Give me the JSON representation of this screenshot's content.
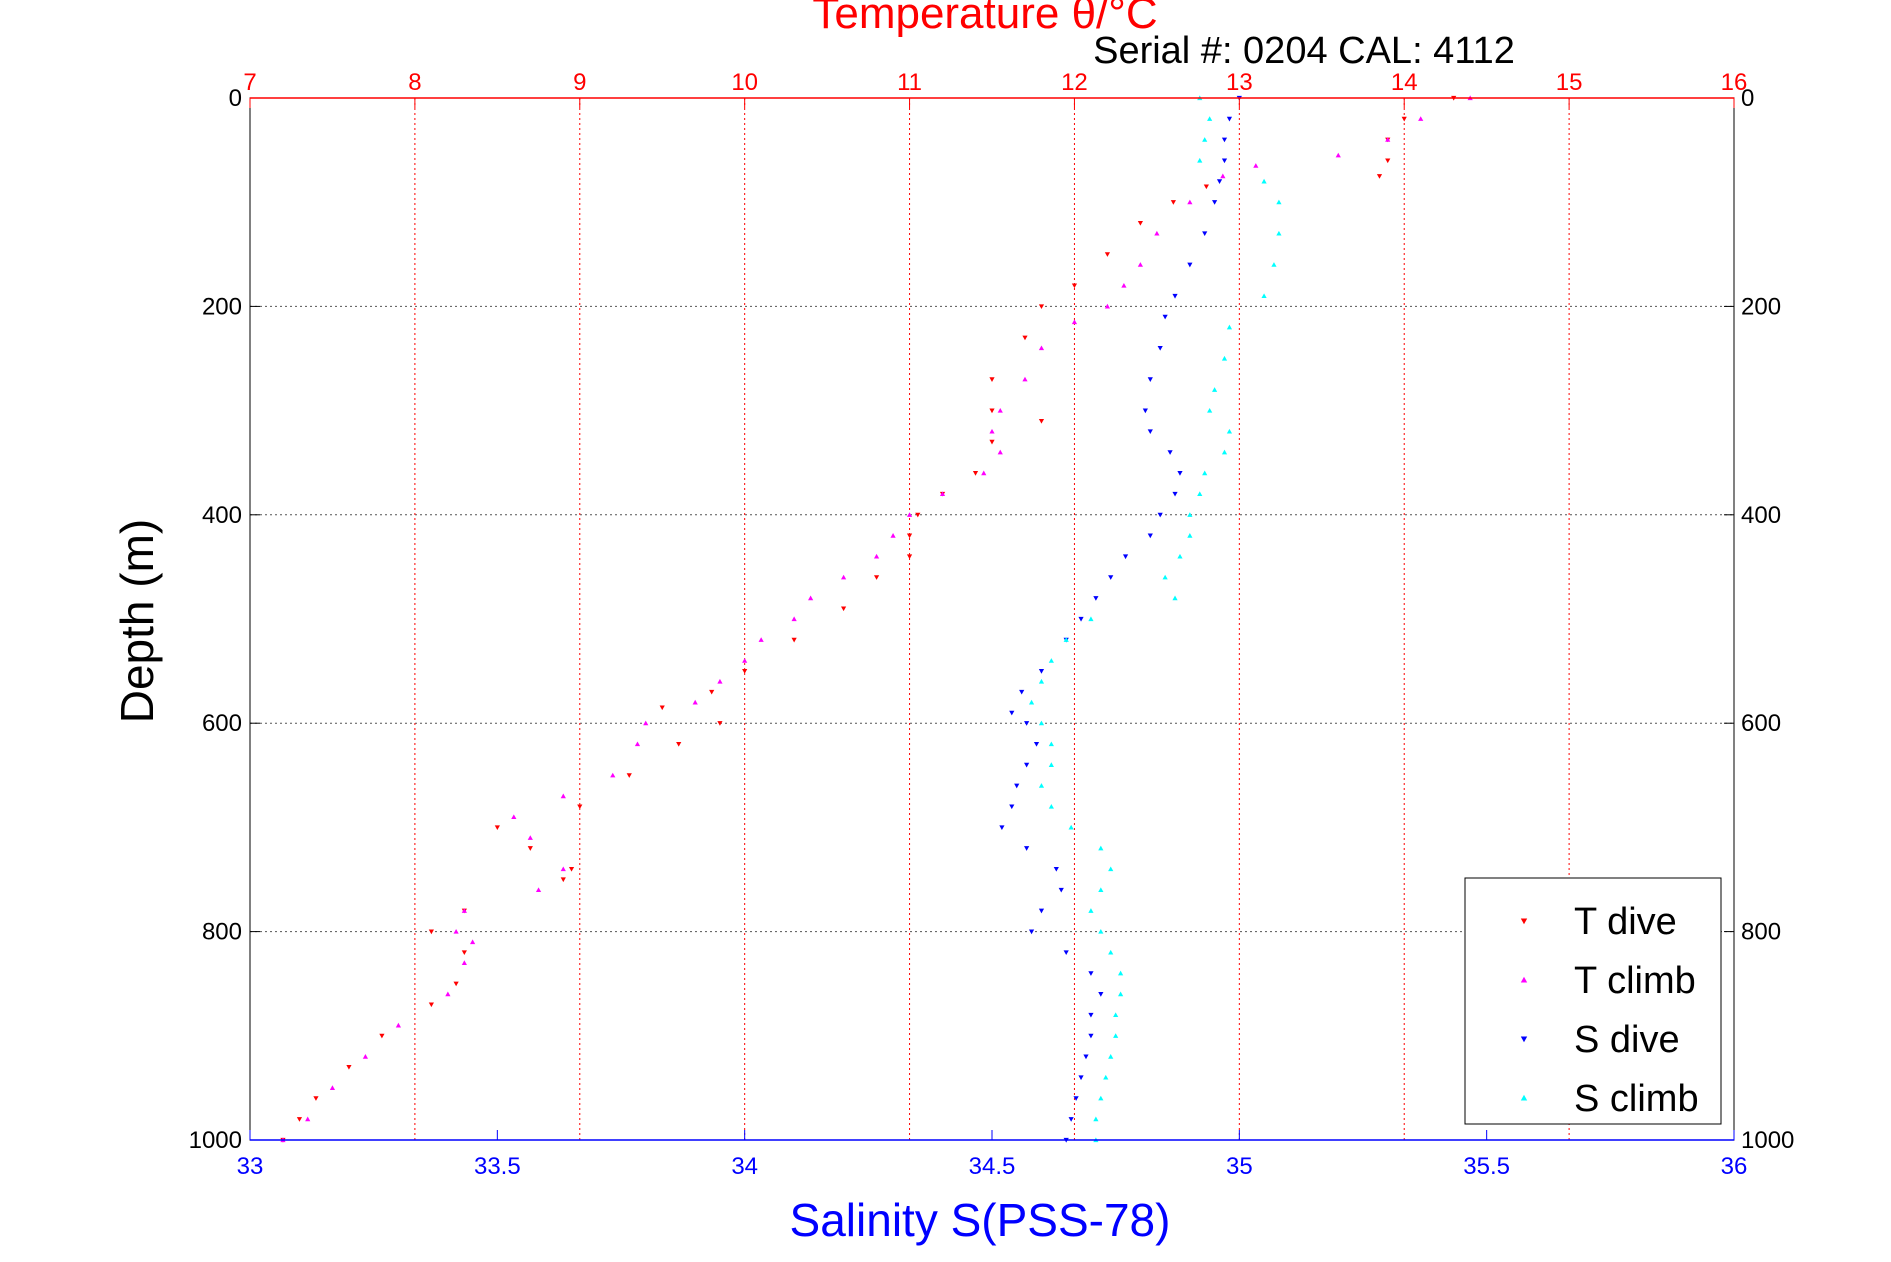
{
  "chart_data": {
    "type": "scatter",
    "title": "Temperature θ/°C",
    "subtitle": "Serial #: 0204  CAL: 4112",
    "xlabel": "Salinity S(PSS-78)",
    "ylabel": "Depth (m)",
    "grid": true,
    "legend_position": "bottom-right",
    "axes": {
      "depth": {
        "range": [
          0,
          1000
        ],
        "reversed": true,
        "ticks": [
          "0",
          "200",
          "400",
          "600",
          "800",
          "1000"
        ]
      },
      "salinity": {
        "range": [
          33,
          36
        ],
        "ticks": [
          "33",
          "33.5",
          "34",
          "34.5",
          "35",
          "35.5",
          "36"
        ]
      },
      "temperature": {
        "range": [
          7,
          16
        ],
        "ticks": [
          "7",
          "8",
          "9",
          "10",
          "11",
          "12",
          "13",
          "14",
          "15",
          "16"
        ]
      }
    },
    "colors": {
      "t_dive": "#ff0000",
      "t_climb": "#ff00ff",
      "s_dive": "#0000ff",
      "s_climb": "#00ffff",
      "temp_axis": "#ff0000",
      "sal_axis": "#0000ff"
    },
    "series": [
      {
        "name": "T dive",
        "key": "t_dive",
        "variable": "temperature",
        "marker": "triangle-down",
        "points": [
          [
            0,
            14.3
          ],
          [
            20,
            14.0
          ],
          [
            40,
            13.9
          ],
          [
            60,
            13.9
          ],
          [
            75,
            13.85
          ],
          [
            85,
            12.8
          ],
          [
            100,
            12.6
          ],
          [
            120,
            12.4
          ],
          [
            150,
            12.2
          ],
          [
            180,
            12.0
          ],
          [
            200,
            11.8
          ],
          [
            230,
            11.7
          ],
          [
            270,
            11.5
          ],
          [
            300,
            11.5
          ],
          [
            310,
            11.8
          ],
          [
            330,
            11.5
          ],
          [
            360,
            11.4
          ],
          [
            380,
            11.2
          ],
          [
            400,
            11.05
          ],
          [
            420,
            11.0
          ],
          [
            440,
            11.0
          ],
          [
            460,
            10.8
          ],
          [
            490,
            10.6
          ],
          [
            520,
            10.3
          ],
          [
            550,
            10.0
          ],
          [
            570,
            9.8
          ],
          [
            585,
            9.5
          ],
          [
            600,
            9.85
          ],
          [
            620,
            9.6
          ],
          [
            650,
            9.3
          ],
          [
            680,
            9.0
          ],
          [
            700,
            8.5
          ],
          [
            720,
            8.7
          ],
          [
            740,
            8.95
          ],
          [
            750,
            8.9
          ],
          [
            780,
            8.3
          ],
          [
            800,
            8.1
          ],
          [
            820,
            8.3
          ],
          [
            850,
            8.25
          ],
          [
            870,
            8.1
          ],
          [
            900,
            7.8
          ],
          [
            930,
            7.6
          ],
          [
            960,
            7.4
          ],
          [
            980,
            7.3
          ],
          [
            1000,
            7.2
          ]
        ]
      },
      {
        "name": "T climb",
        "key": "t_climb",
        "variable": "temperature",
        "marker": "triangle-up",
        "points": [
          [
            0,
            14.4
          ],
          [
            20,
            14.1
          ],
          [
            40,
            13.9
          ],
          [
            55,
            13.6
          ],
          [
            65,
            13.1
          ],
          [
            75,
            12.9
          ],
          [
            100,
            12.7
          ],
          [
            130,
            12.5
          ],
          [
            160,
            12.4
          ],
          [
            180,
            12.3
          ],
          [
            200,
            12.2
          ],
          [
            215,
            12.0
          ],
          [
            240,
            11.8
          ],
          [
            270,
            11.7
          ],
          [
            300,
            11.55
          ],
          [
            320,
            11.5
          ],
          [
            340,
            11.55
          ],
          [
            360,
            11.45
          ],
          [
            380,
            11.2
          ],
          [
            400,
            11.0
          ],
          [
            420,
            10.9
          ],
          [
            440,
            10.8
          ],
          [
            460,
            10.6
          ],
          [
            480,
            10.4
          ],
          [
            500,
            10.3
          ],
          [
            520,
            10.1
          ],
          [
            540,
            10.0
          ],
          [
            560,
            9.85
          ],
          [
            580,
            9.7
          ],
          [
            600,
            9.4
          ],
          [
            620,
            9.35
          ],
          [
            650,
            9.2
          ],
          [
            670,
            8.9
          ],
          [
            690,
            8.6
          ],
          [
            710,
            8.7
          ],
          [
            740,
            8.9
          ],
          [
            760,
            8.75
          ],
          [
            780,
            8.3
          ],
          [
            800,
            8.25
          ],
          [
            810,
            8.35
          ],
          [
            830,
            8.3
          ],
          [
            860,
            8.2
          ],
          [
            890,
            7.9
          ],
          [
            920,
            7.7
          ],
          [
            950,
            7.5
          ],
          [
            980,
            7.35
          ],
          [
            1000,
            7.2
          ]
        ]
      },
      {
        "name": "S dive",
        "key": "s_dive",
        "variable": "salinity",
        "marker": "triangle-down",
        "points": [
          [
            0,
            35.0
          ],
          [
            20,
            34.98
          ],
          [
            40,
            34.97
          ],
          [
            60,
            34.97
          ],
          [
            80,
            34.96
          ],
          [
            100,
            34.95
          ],
          [
            130,
            34.93
          ],
          [
            160,
            34.9
          ],
          [
            190,
            34.87
          ],
          [
            210,
            34.85
          ],
          [
            240,
            34.84
          ],
          [
            270,
            34.82
          ],
          [
            300,
            34.81
          ],
          [
            320,
            34.82
          ],
          [
            340,
            34.86
          ],
          [
            360,
            34.88
          ],
          [
            380,
            34.87
          ],
          [
            400,
            34.84
          ],
          [
            420,
            34.82
          ],
          [
            440,
            34.77
          ],
          [
            460,
            34.74
          ],
          [
            480,
            34.71
          ],
          [
            500,
            34.68
          ],
          [
            520,
            34.65
          ],
          [
            550,
            34.6
          ],
          [
            570,
            34.56
          ],
          [
            590,
            34.54
          ],
          [
            600,
            34.57
          ],
          [
            620,
            34.59
          ],
          [
            640,
            34.57
          ],
          [
            660,
            34.55
          ],
          [
            680,
            34.54
          ],
          [
            700,
            34.52
          ],
          [
            720,
            34.57
          ],
          [
            740,
            34.63
          ],
          [
            760,
            34.64
          ],
          [
            780,
            34.6
          ],
          [
            800,
            34.58
          ],
          [
            820,
            34.65
          ],
          [
            840,
            34.7
          ],
          [
            860,
            34.72
          ],
          [
            880,
            34.7
          ],
          [
            900,
            34.7
          ],
          [
            920,
            34.69
          ],
          [
            940,
            34.68
          ],
          [
            960,
            34.67
          ],
          [
            980,
            34.66
          ],
          [
            1000,
            34.65
          ]
        ]
      },
      {
        "name": "S climb",
        "key": "s_climb",
        "variable": "salinity",
        "marker": "triangle-up",
        "points": [
          [
            0,
            34.92
          ],
          [
            20,
            34.94
          ],
          [
            40,
            34.93
          ],
          [
            60,
            34.92
          ],
          [
            80,
            35.05
          ],
          [
            100,
            35.08
          ],
          [
            130,
            35.08
          ],
          [
            160,
            35.07
          ],
          [
            190,
            35.05
          ],
          [
            220,
            34.98
          ],
          [
            250,
            34.97
          ],
          [
            280,
            34.95
          ],
          [
            300,
            34.94
          ],
          [
            320,
            34.98
          ],
          [
            340,
            34.97
          ],
          [
            360,
            34.93
          ],
          [
            380,
            34.92
          ],
          [
            400,
            34.9
          ],
          [
            420,
            34.9
          ],
          [
            440,
            34.88
          ],
          [
            460,
            34.85
          ],
          [
            480,
            34.87
          ],
          [
            500,
            34.7
          ],
          [
            520,
            34.65
          ],
          [
            540,
            34.62
          ],
          [
            560,
            34.6
          ],
          [
            580,
            34.58
          ],
          [
            600,
            34.6
          ],
          [
            620,
            34.62
          ],
          [
            640,
            34.62
          ],
          [
            660,
            34.6
          ],
          [
            680,
            34.62
          ],
          [
            700,
            34.66
          ],
          [
            720,
            34.72
          ],
          [
            740,
            34.74
          ],
          [
            760,
            34.72
          ],
          [
            780,
            34.7
          ],
          [
            800,
            34.72
          ],
          [
            820,
            34.74
          ],
          [
            840,
            34.76
          ],
          [
            860,
            34.76
          ],
          [
            880,
            34.75
          ],
          [
            900,
            34.75
          ],
          [
            920,
            34.74
          ],
          [
            940,
            34.73
          ],
          [
            960,
            34.72
          ],
          [
            980,
            34.71
          ],
          [
            1000,
            34.71
          ]
        ]
      }
    ]
  }
}
